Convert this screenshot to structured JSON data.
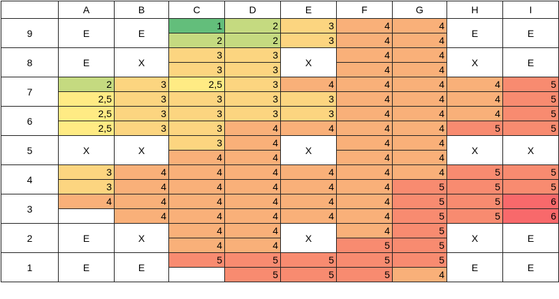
{
  "header": {
    "columns": [
      "A",
      "B",
      "C",
      "D",
      "E",
      "F",
      "G",
      "H",
      "I"
    ]
  },
  "palette": {
    "1": "#63be7b",
    "2": "#c5da80",
    "2,5": "#ffeb84",
    "3": "#fcd580",
    "4": "#f9b079",
    "5": "#f88b70",
    "6": "#f8696b"
  },
  "rows": [
    {
      "label": "9",
      "cells": [
        {
          "text": "E"
        },
        {
          "text": "E"
        },
        {
          "top": "1",
          "bottom": "2"
        },
        {
          "top": "2",
          "bottom": "2"
        },
        {
          "top": "3",
          "bottom": "3"
        },
        {
          "top": "4",
          "bottom": "4"
        },
        {
          "top": "4",
          "bottom": "4"
        },
        {
          "text": "E"
        },
        {
          "text": "E"
        }
      ]
    },
    {
      "label": "8",
      "cells": [
        {
          "text": "E"
        },
        {
          "text": "X"
        },
        {
          "top": "3",
          "bottom": "3"
        },
        {
          "top": "3",
          "bottom": "3"
        },
        {
          "text": "X"
        },
        {
          "top": "4",
          "bottom": "4"
        },
        {
          "top": "4",
          "bottom": "4"
        },
        {
          "text": "X"
        },
        {
          "text": "E"
        }
      ]
    },
    {
      "label": "7",
      "cells": [
        {
          "top": "2",
          "bottom": "2,5"
        },
        {
          "top": "3",
          "bottom": "3"
        },
        {
          "top": "2,5",
          "bottom": "3"
        },
        {
          "top": "3",
          "bottom": "3"
        },
        {
          "top": "4",
          "bottom": "3"
        },
        {
          "top": "4",
          "bottom": "4"
        },
        {
          "top": "4",
          "bottom": "4"
        },
        {
          "top": "4",
          "bottom": "4"
        },
        {
          "top": "5",
          "bottom": "5"
        }
      ]
    },
    {
      "label": "6",
      "cells": [
        {
          "top": "2,5",
          "bottom": "2,5"
        },
        {
          "top": "3",
          "bottom": "3"
        },
        {
          "top": "3",
          "bottom": "3"
        },
        {
          "top": "3",
          "bottom": "4"
        },
        {
          "top": "3",
          "bottom": "4"
        },
        {
          "top": "4",
          "bottom": "4"
        },
        {
          "top": "4",
          "bottom": "4"
        },
        {
          "top": "4",
          "bottom": "5"
        },
        {
          "top": "5",
          "bottom": "5"
        }
      ]
    },
    {
      "label": "5",
      "cells": [
        {
          "text": "X"
        },
        {
          "text": "X"
        },
        {
          "top": "3",
          "bottom": "4"
        },
        {
          "top": "4",
          "bottom": "4"
        },
        {
          "text": "X"
        },
        {
          "top": "4",
          "bottom": "4"
        },
        {
          "top": "4",
          "bottom": "4"
        },
        {
          "text": "X"
        },
        {
          "text": "X"
        }
      ]
    },
    {
      "label": "4",
      "cells": [
        {
          "top": "3",
          "bottom": "3"
        },
        {
          "top": "4",
          "bottom": "4"
        },
        {
          "top": "4",
          "bottom": "4"
        },
        {
          "top": "4",
          "bottom": "4"
        },
        {
          "top": "4",
          "bottom": "4"
        },
        {
          "top": "4",
          "bottom": "4"
        },
        {
          "top": "4",
          "bottom": "5"
        },
        {
          "top": "5",
          "bottom": "5"
        },
        {
          "top": "5",
          "bottom": "5"
        }
      ]
    },
    {
      "label": "3",
      "cells": [
        {
          "top": "4",
          "bottom": null
        },
        {
          "top": "4",
          "bottom": "4"
        },
        {
          "top": "4",
          "bottom": "4"
        },
        {
          "top": "4",
          "bottom": "4"
        },
        {
          "top": "4",
          "bottom": "4"
        },
        {
          "top": "4",
          "bottom": "4"
        },
        {
          "top": "5",
          "bottom": "5"
        },
        {
          "top": "5",
          "bottom": "5"
        },
        {
          "top": "6",
          "bottom": "6"
        }
      ]
    },
    {
      "label": "2",
      "cells": [
        {
          "text": "E"
        },
        {
          "text": "X"
        },
        {
          "top": "4",
          "bottom": "4"
        },
        {
          "top": "4",
          "bottom": "4"
        },
        {
          "text": "X"
        },
        {
          "top": "4",
          "bottom": "5"
        },
        {
          "top": "5",
          "bottom": "5"
        },
        {
          "text": "X"
        },
        {
          "text": "E"
        }
      ]
    },
    {
      "label": "1",
      "cells": [
        {
          "text": "E"
        },
        {
          "text": "E"
        },
        {
          "top": "5",
          "bottom": null
        },
        {
          "top": "5",
          "bottom": "5"
        },
        {
          "top": "5",
          "bottom": "5"
        },
        {
          "top": "5",
          "bottom": "5"
        },
        {
          "top": "5",
          "bottom": "4"
        },
        {
          "text": "E"
        },
        {
          "text": "E"
        }
      ]
    }
  ]
}
